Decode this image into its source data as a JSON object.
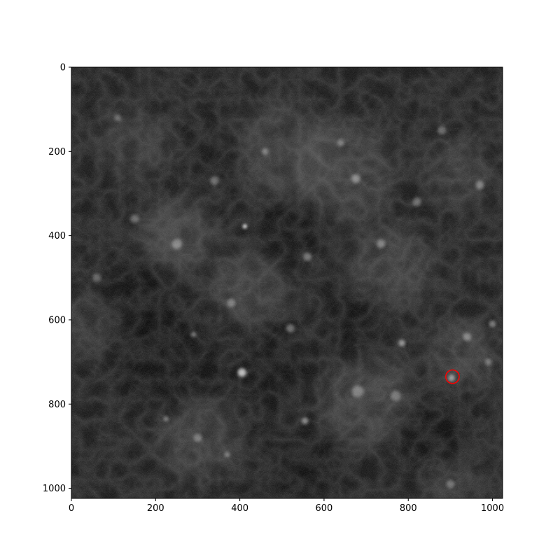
{
  "figure": {
    "type": "image",
    "description_note": "",
    "image_extent": {
      "x": [
        0,
        1024
      ],
      "y": [
        0,
        1024
      ]
    },
    "colormap": "gray",
    "background_color": "#1b1b1b",
    "x_axis": {
      "ticks": [
        0,
        200,
        400,
        600,
        800,
        1000
      ],
      "tick_labels": [
        "0",
        "200",
        "400",
        "600",
        "800",
        "1000"
      ]
    },
    "y_axis": {
      "ticks": [
        0,
        200,
        400,
        600,
        800,
        1000
      ],
      "tick_labels": [
        "0",
        "200",
        "400",
        "600",
        "800",
        "1000"
      ],
      "inverted": true
    },
    "marker": {
      "shape": "circle",
      "color": "#ff0000",
      "x": 905,
      "y": 735,
      "radius": 16
    },
    "bright_spots": [
      {
        "x": 412,
        "y": 378,
        "r": 5,
        "intensity": 1.0
      },
      {
        "x": 405,
        "y": 725,
        "r": 10,
        "intensity": 0.7
      },
      {
        "x": 903,
        "y": 738,
        "r": 8,
        "intensity": 0.5
      },
      {
        "x": 785,
        "y": 655,
        "r": 8,
        "intensity": 0.5
      },
      {
        "x": 290,
        "y": 635,
        "r": 6,
        "intensity": 0.4
      },
      {
        "x": 555,
        "y": 840,
        "r": 8,
        "intensity": 0.45
      },
      {
        "x": 225,
        "y": 835,
        "r": 6,
        "intensity": 0.4
      },
      {
        "x": 370,
        "y": 920,
        "r": 6,
        "intensity": 0.4
      },
      {
        "x": 675,
        "y": 265,
        "r": 10,
        "intensity": 0.4
      },
      {
        "x": 735,
        "y": 420,
        "r": 10,
        "intensity": 0.35
      },
      {
        "x": 560,
        "y": 450,
        "r": 10,
        "intensity": 0.35
      },
      {
        "x": 460,
        "y": 200,
        "r": 8,
        "intensity": 0.35
      },
      {
        "x": 640,
        "y": 180,
        "r": 8,
        "intensity": 0.35
      },
      {
        "x": 250,
        "y": 420,
        "r": 12,
        "intensity": 0.35
      },
      {
        "x": 150,
        "y": 360,
        "r": 10,
        "intensity": 0.3
      },
      {
        "x": 940,
        "y": 640,
        "r": 10,
        "intensity": 0.35
      },
      {
        "x": 1000,
        "y": 610,
        "r": 8,
        "intensity": 0.4
      },
      {
        "x": 970,
        "y": 280,
        "r": 10,
        "intensity": 0.35
      },
      {
        "x": 880,
        "y": 150,
        "r": 10,
        "intensity": 0.3
      },
      {
        "x": 520,
        "y": 620,
        "r": 10,
        "intensity": 0.35
      },
      {
        "x": 380,
        "y": 560,
        "r": 10,
        "intensity": 0.35
      },
      {
        "x": 680,
        "y": 770,
        "r": 14,
        "intensity": 0.3
      },
      {
        "x": 770,
        "y": 780,
        "r": 12,
        "intensity": 0.3
      },
      {
        "x": 300,
        "y": 880,
        "r": 10,
        "intensity": 0.3
      },
      {
        "x": 900,
        "y": 990,
        "r": 10,
        "intensity": 0.3
      },
      {
        "x": 990,
        "y": 700,
        "r": 8,
        "intensity": 0.3
      },
      {
        "x": 110,
        "y": 120,
        "r": 8,
        "intensity": 0.25
      },
      {
        "x": 340,
        "y": 270,
        "r": 10,
        "intensity": 0.3
      },
      {
        "x": 820,
        "y": 320,
        "r": 10,
        "intensity": 0.3
      },
      {
        "x": 60,
        "y": 500,
        "r": 10,
        "intensity": 0.25
      }
    ],
    "bright_regions": [
      {
        "x": 250,
        "y": 400,
        "r": 90,
        "intensity": 0.12
      },
      {
        "x": 650,
        "y": 250,
        "r": 120,
        "intensity": 0.1
      },
      {
        "x": 760,
        "y": 470,
        "r": 100,
        "intensity": 0.1
      },
      {
        "x": 420,
        "y": 520,
        "r": 90,
        "intensity": 0.11
      },
      {
        "x": 700,
        "y": 790,
        "r": 110,
        "intensity": 0.11
      },
      {
        "x": 300,
        "y": 880,
        "r": 100,
        "intensity": 0.1
      },
      {
        "x": 500,
        "y": 200,
        "r": 120,
        "intensity": 0.09
      },
      {
        "x": 920,
        "y": 250,
        "r": 80,
        "intensity": 0.09
      },
      {
        "x": 150,
        "y": 180,
        "r": 90,
        "intensity": 0.08
      },
      {
        "x": 930,
        "y": 680,
        "r": 80,
        "intensity": 0.1
      },
      {
        "x": 900,
        "y": 980,
        "r": 70,
        "intensity": 0.08
      },
      {
        "x": 50,
        "y": 600,
        "r": 80,
        "intensity": 0.07
      }
    ],
    "dark_regions": [
      {
        "x": 230,
        "y": 700,
        "r": 120
      },
      {
        "x": 150,
        "y": 550,
        "r": 100
      },
      {
        "x": 520,
        "y": 390,
        "r": 80
      },
      {
        "x": 680,
        "y": 620,
        "r": 80
      },
      {
        "x": 470,
        "y": 720,
        "r": 90
      },
      {
        "x": 560,
        "y": 960,
        "r": 90
      },
      {
        "x": 860,
        "y": 880,
        "r": 90
      },
      {
        "x": 350,
        "y": 220,
        "r": 60
      }
    ]
  }
}
